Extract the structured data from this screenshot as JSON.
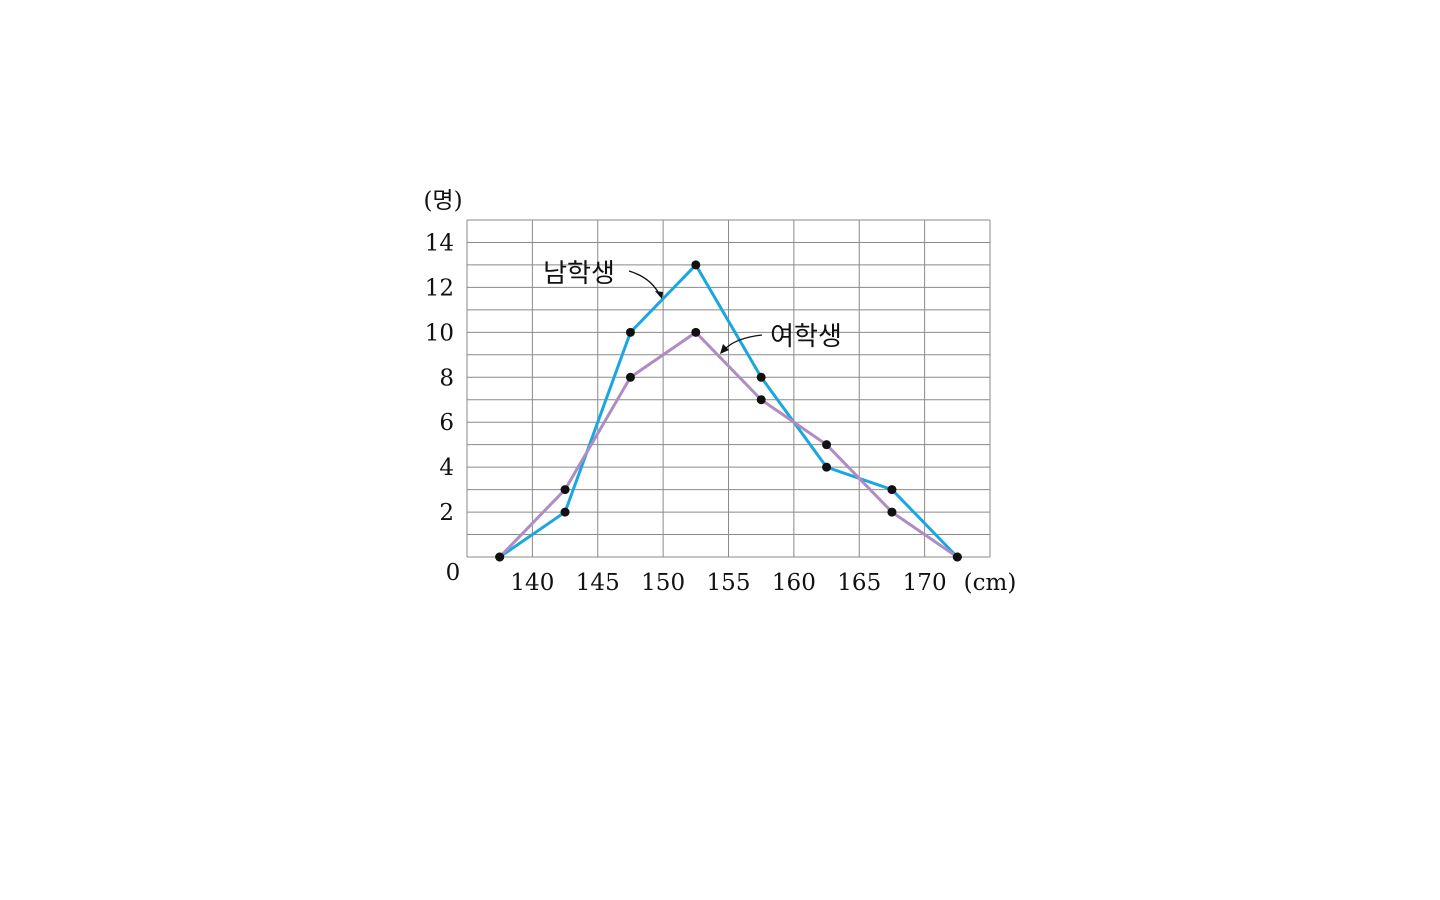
{
  "chart_data": {
    "type": "line",
    "ylabel": "(명)",
    "xlabel": "(cm)",
    "origin_label": "0",
    "ylim": [
      0,
      15
    ],
    "xlim": [
      135,
      175
    ],
    "y_ticks": [
      2,
      4,
      6,
      8,
      10,
      12,
      14
    ],
    "x_ticks": [
      140,
      145,
      150,
      155,
      160,
      165,
      170
    ],
    "grid": true,
    "series": [
      {
        "name": "남학생",
        "color": "#1aa7e0",
        "x": [
          137.5,
          142.5,
          147.5,
          152.5,
          157.5,
          162.5,
          167.5,
          172.5
        ],
        "values": [
          0,
          2,
          10,
          13,
          8,
          4,
          3,
          0
        ]
      },
      {
        "name": "여학생",
        "color": "#b08cc4",
        "x": [
          137.5,
          142.5,
          147.5,
          152.5,
          157.5,
          162.5,
          167.5,
          172.5
        ],
        "values": [
          0,
          3,
          8,
          10,
          7,
          5,
          2,
          0
        ]
      }
    ]
  }
}
